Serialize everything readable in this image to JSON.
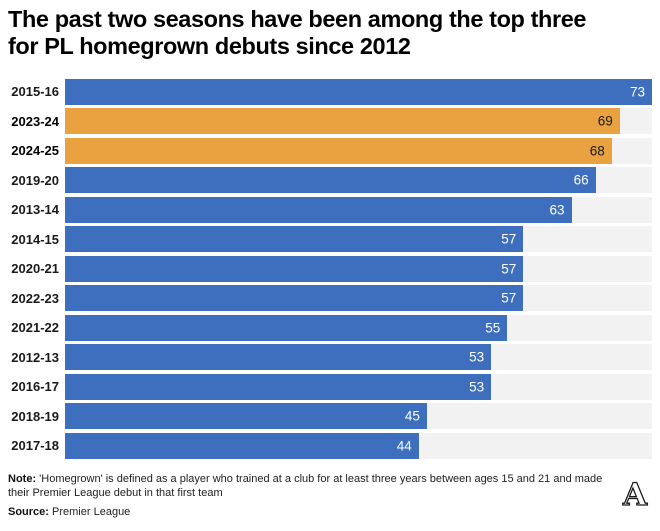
{
  "title": {
    "line1": "The past two seasons have been among the top three",
    "line2": "for PL homegrown debuts since 2012"
  },
  "chart_data": {
    "type": "bar",
    "orientation": "horizontal",
    "title": "The past two seasons have been among the top three for PL homegrown debuts since 2012",
    "categories": [
      "2015-16",
      "2023-24",
      "2024-25",
      "2019-20",
      "2013-14",
      "2014-15",
      "2020-21",
      "2022-23",
      "2021-22",
      "2012-13",
      "2016-17",
      "2018-19",
      "2017-18"
    ],
    "values": [
      73,
      69,
      68,
      66,
      63,
      57,
      57,
      57,
      55,
      53,
      53,
      45,
      44
    ],
    "highlighted": [
      "2023-24",
      "2024-25"
    ],
    "xlim": [
      0,
      73
    ],
    "grid": false,
    "legend_position": "none",
    "bar_color": "#3d6fbe",
    "highlight_color": "#e9a23f",
    "track_color": "#f2f2f2",
    "value_label_color": "#ffffff",
    "value_label_color_highlight": "#1a1a1a"
  },
  "footer": {
    "note_label": "Note:",
    "note_text": "'Homegrown' is defined as a player who trained at a club for at least three years between ages 15 and 21 and made their Premier League debut in that first team",
    "source_label": "Source:",
    "source_text": "Premier League",
    "logo": "the-athletic-a-logo"
  }
}
